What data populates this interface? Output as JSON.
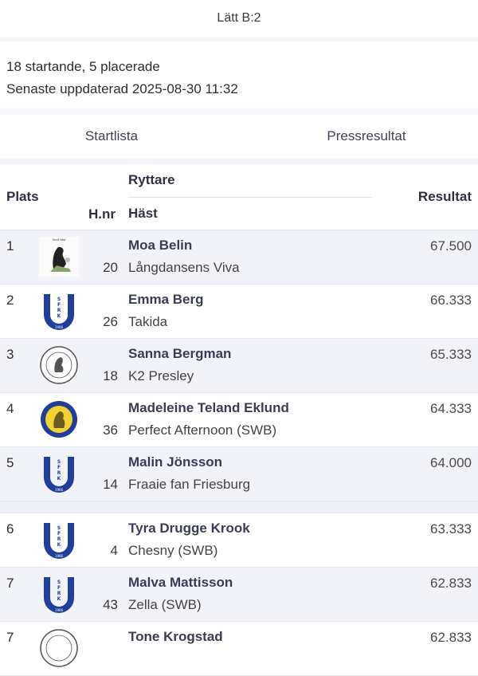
{
  "header": {
    "title": "Lätt B:2"
  },
  "info": {
    "participants": "18 startande, 5 placerade",
    "updated": "Senaste uppdaterad 2025-08-30 11:32"
  },
  "tabs": [
    {
      "label": "Startlista"
    },
    {
      "label": "Pressresultat"
    }
  ],
  "table": {
    "columns": {
      "place": "Plats",
      "hnr": "H.nr",
      "rider": "Ryttare",
      "horse": "Häst",
      "result": "Resultat"
    },
    "rows": [
      {
        "place": "1",
        "hnr": "20",
        "rider": "Moa Belin",
        "horse": "Långdansens Viva",
        "result": "67.500",
        "logo": "rider-club-logo"
      },
      {
        "place": "2",
        "hnr": "26",
        "rider": "Emma Berg",
        "horse": "Takida",
        "result": "66.333",
        "logo": "sfrk-horseshoe-logo"
      },
      {
        "place": "3",
        "hnr": "18",
        "rider": "Sanna Bergman",
        "horse": "K2 Presley",
        "result": "65.333",
        "logo": "round-club-logo"
      },
      {
        "place": "4",
        "hnr": "36",
        "rider": "Madeleine Teland Eklund",
        "horse": "Perfect Afternoon (SWB)",
        "result": "64.333",
        "logo": "yellow-horse-logo"
      },
      {
        "place": "5",
        "hnr": "14",
        "rider": "Malin Jönsson",
        "horse": "Fraaie fan Friesburg",
        "result": "64.000",
        "logo": "sfrk-horseshoe-logo"
      },
      {
        "place": "6",
        "hnr": "4",
        "rider": "Tyra Drugge Krook",
        "horse": "Chesny (SWB)",
        "result": "63.333",
        "logo": "sfrk-horseshoe-logo"
      },
      {
        "place": "7",
        "hnr": "43",
        "rider": "Malva Mattisson",
        "horse": "Zella (SWB)",
        "result": "62.833",
        "logo": "sfrk-horseshoe-logo"
      },
      {
        "place": "7",
        "hnr": "",
        "rider": "Tone Krogstad",
        "horse": "",
        "result": "62.833",
        "logo": "round-club-logo"
      }
    ]
  },
  "colors": {
    "accent_blue": "#1f3f9a",
    "logo_yellow": "#f3d230"
  }
}
